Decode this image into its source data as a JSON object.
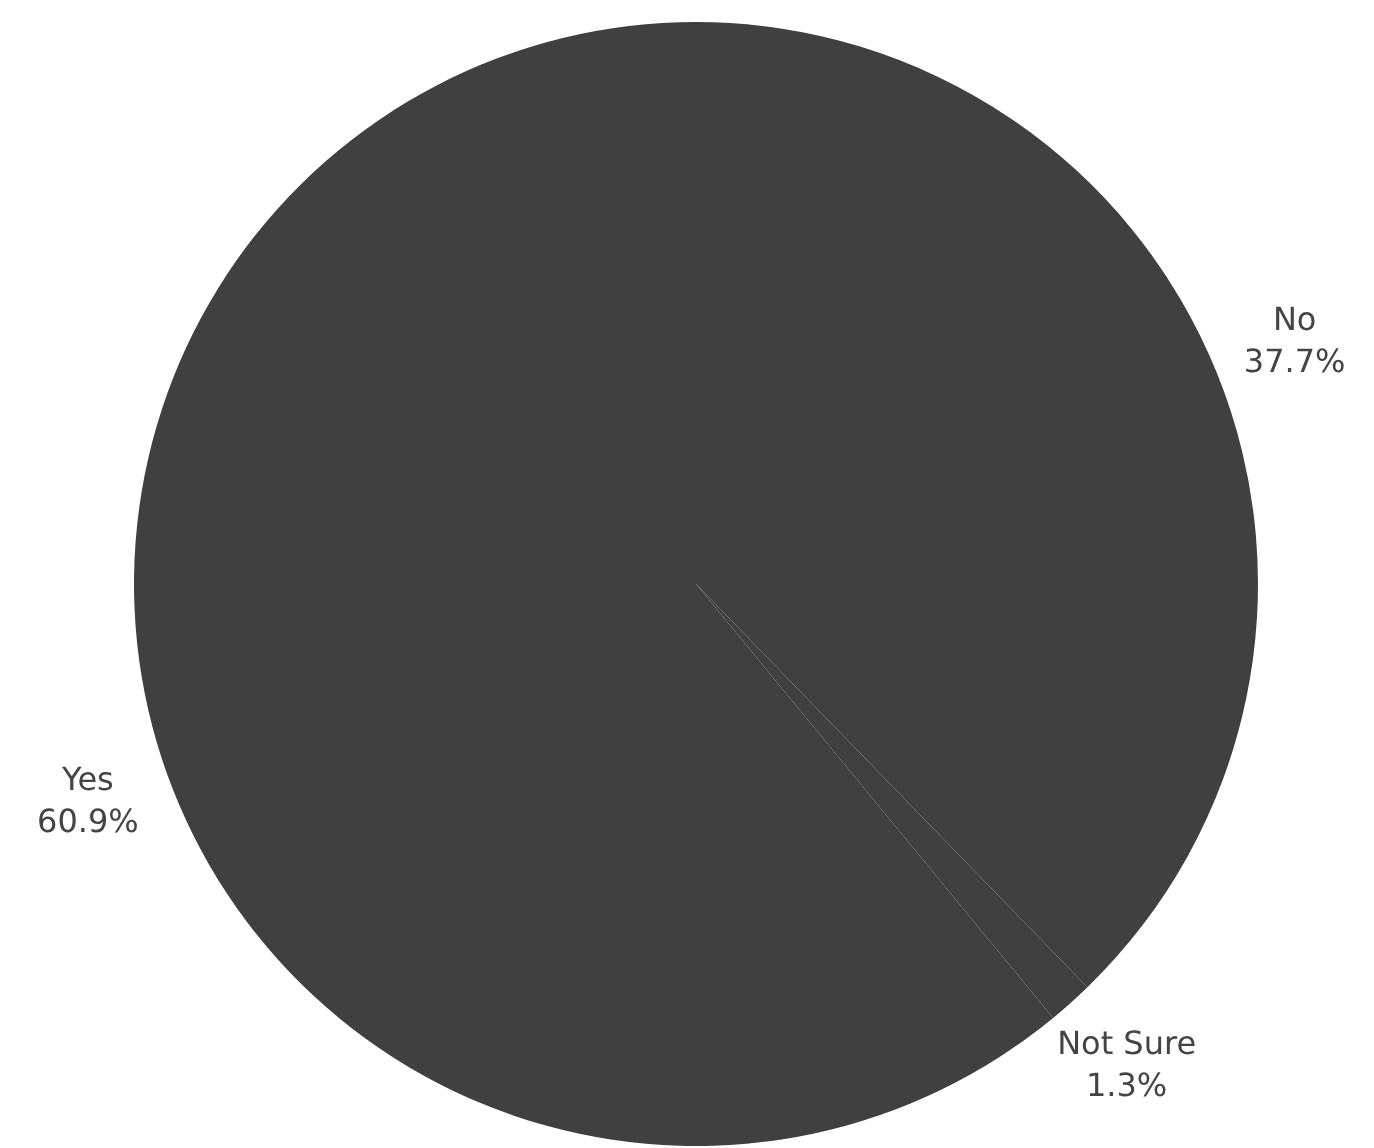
{
  "chart_data": {
    "type": "pie",
    "categories": [
      "No",
      "Not Sure",
      "Yes"
    ],
    "values": [
      37.7,
      1.3,
      60.9
    ],
    "colors": [
      "#404040",
      "#404040",
      "#404040"
    ],
    "value_labels": [
      "37.7%",
      "1.3%",
      "60.9%"
    ]
  }
}
